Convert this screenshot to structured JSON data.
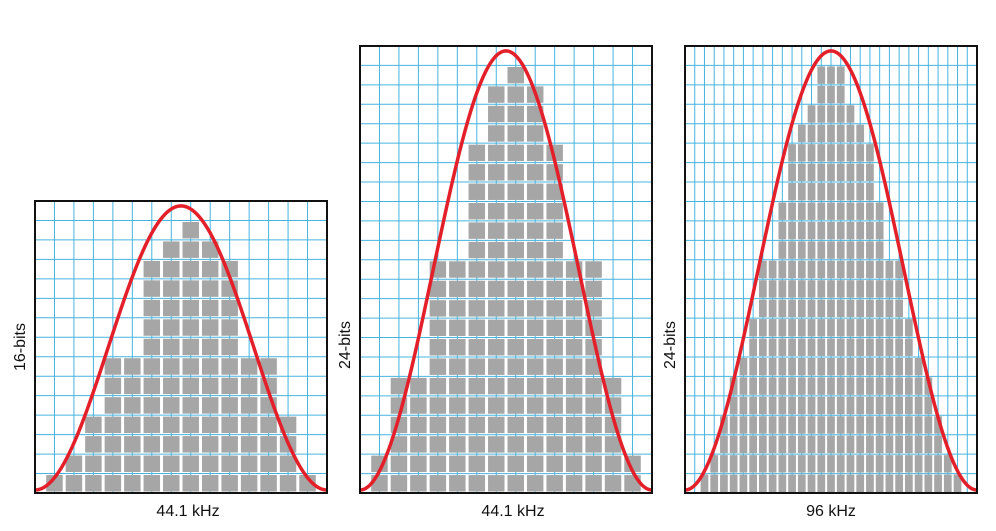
{
  "colors": {
    "grid": "#46b4e0",
    "bar": "#a6a6a6",
    "bar_gap": "#ffffff",
    "curve": "#e3202a",
    "frame": "#111111"
  },
  "panels": [
    {
      "ylabel": "16-bits",
      "xlabel": "44.1 kHz",
      "grid_cols": 15,
      "grid_rows": 15,
      "bars": [
        0,
        1,
        2,
        4,
        7,
        7,
        12,
        13,
        14,
        13,
        12,
        7,
        7,
        4,
        1,
        0
      ]
    },
    {
      "ylabel": "24-bits",
      "xlabel": "44.1 kHz",
      "grid_cols": 15,
      "grid_rows": 23,
      "bars": [
        0,
        2,
        6,
        6,
        12,
        12,
        18,
        21,
        22,
        21,
        18,
        12,
        12,
        6,
        2,
        0
      ]
    },
    {
      "ylabel": "24-bits",
      "xlabel": "96 kHz",
      "grid_cols": 30,
      "grid_rows": 23,
      "bars": [
        0,
        0,
        1,
        2,
        4,
        6,
        7,
        9,
        12,
        12,
        15,
        18,
        19,
        20,
        22,
        22,
        22,
        20,
        19,
        18,
        15,
        12,
        12,
        9,
        7,
        6,
        4,
        2,
        1,
        0,
        0
      ]
    }
  ]
}
